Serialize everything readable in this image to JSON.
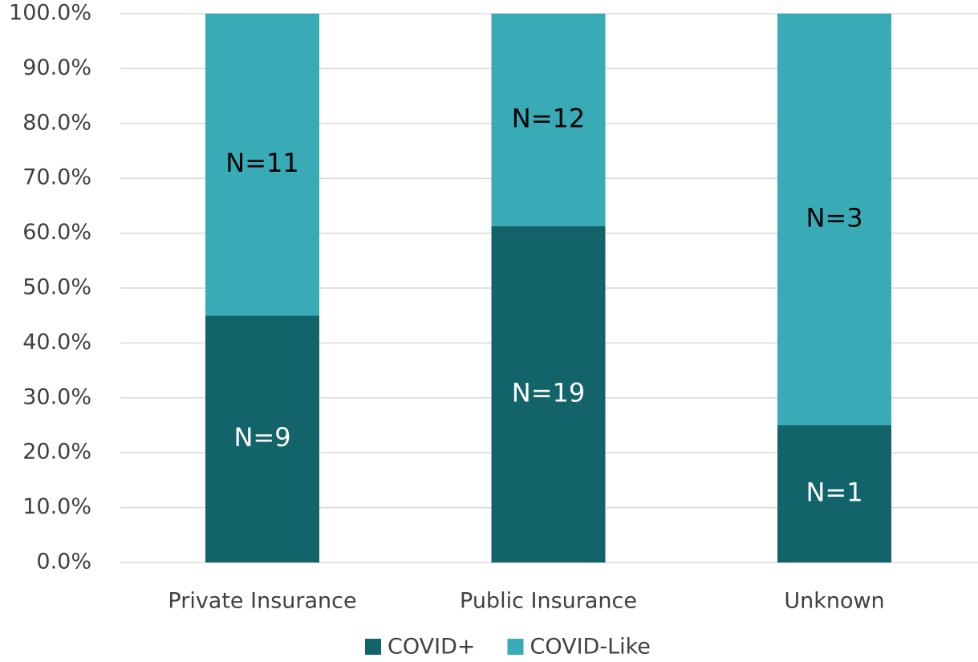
{
  "chart_data": {
    "type": "stacked_bar",
    "categories": [
      "Private Insurance",
      "Public Insurance",
      "Unknown"
    ],
    "series": [
      {
        "name": "COVID+",
        "color": "#12636a",
        "values": [
          45,
          61.3,
          25
        ],
        "labels": [
          "N=9",
          "N=19",
          "N=1"
        ],
        "label_color": "#ffffff"
      },
      {
        "name": "COVID-Like",
        "color": "#38abb7",
        "values": [
          55,
          38.7,
          75
        ],
        "labels": [
          "N=11",
          "N=12",
          "N=3"
        ],
        "label_color": "#000000"
      }
    ],
    "ylim": [
      0,
      100
    ],
    "yticks": [
      {
        "value": 0,
        "label": "0.0%"
      },
      {
        "value": 10,
        "label": "10.0%"
      },
      {
        "value": 20,
        "label": "20.0%"
      },
      {
        "value": 30,
        "label": "30.0%"
      },
      {
        "value": 40,
        "label": "40.0%"
      },
      {
        "value": 50,
        "label": "50.0%"
      },
      {
        "value": 60,
        "label": "60.0%"
      },
      {
        "value": 70,
        "label": "70.0%"
      },
      {
        "value": 80,
        "label": "80.0%"
      },
      {
        "value": 90,
        "label": "90.0%"
      },
      {
        "value": 100,
        "label": "100.0%"
      }
    ],
    "grid": true,
    "legend": "bottom"
  }
}
